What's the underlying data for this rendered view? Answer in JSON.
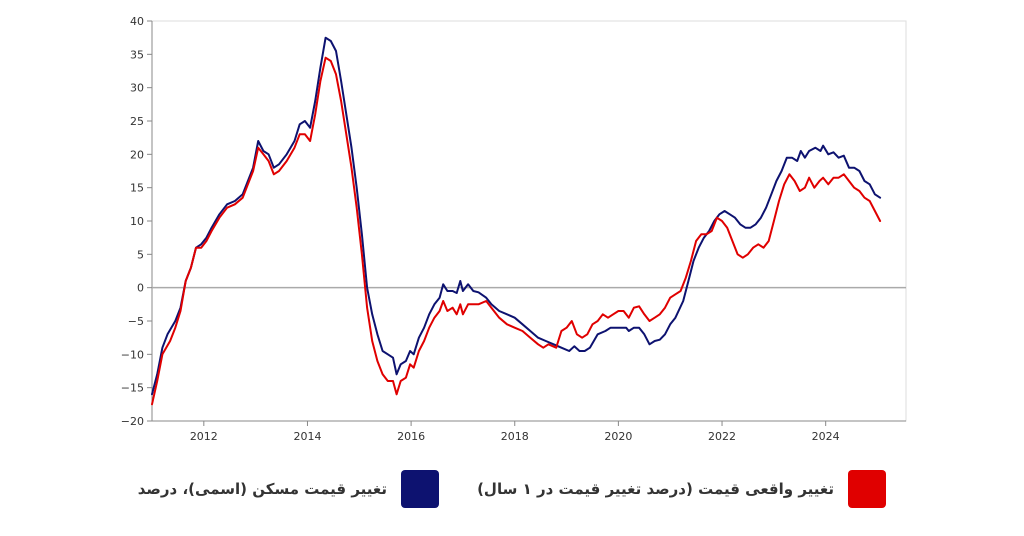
{
  "chart_data": {
    "type": "line",
    "xlim": [
      2011.0,
      2025.55
    ],
    "ylim": [
      -20,
      40
    ],
    "x_ticks": [
      2012,
      2014,
      2016,
      2018,
      2020,
      2022,
      2024
    ],
    "x_tick_labels": [
      "2012",
      "2014",
      "2016",
      "2018",
      "2020",
      "2022",
      "2024"
    ],
    "y_ticks": [
      -20,
      -15,
      -10,
      -5,
      0,
      5,
      10,
      15,
      20,
      25,
      30,
      35,
      40
    ],
    "y_tick_labels": [
      "−20",
      "−15",
      "−10",
      "−5",
      "0",
      "5",
      "10",
      "15",
      "20",
      "25",
      "30",
      "35",
      "40"
    ],
    "grid": false,
    "legend_position": "bottom",
    "series": [
      {
        "name": "تغییر قیمت مسکن (اسمی)، درصد",
        "color": "#0d1270",
        "points": [
          [
            2011.0,
            -16
          ],
          [
            2011.1,
            -13
          ],
          [
            2011.2,
            -9
          ],
          [
            2011.3,
            -7
          ],
          [
            2011.45,
            -5
          ],
          [
            2011.55,
            -3
          ],
          [
            2011.65,
            1
          ],
          [
            2011.75,
            3
          ],
          [
            2011.85,
            6
          ],
          [
            2011.95,
            6.5
          ],
          [
            2012.05,
            7.5
          ],
          [
            2012.15,
            9
          ],
          [
            2012.3,
            11
          ],
          [
            2012.45,
            12.5
          ],
          [
            2012.6,
            13
          ],
          [
            2012.75,
            14
          ],
          [
            2012.85,
            16
          ],
          [
            2012.95,
            18
          ],
          [
            2013.05,
            22
          ],
          [
            2013.15,
            20.5
          ],
          [
            2013.25,
            20
          ],
          [
            2013.35,
            18
          ],
          [
            2013.45,
            18.5
          ],
          [
            2013.6,
            20
          ],
          [
            2013.75,
            22
          ],
          [
            2013.85,
            24.5
          ],
          [
            2013.95,
            25
          ],
          [
            2014.05,
            24
          ],
          [
            2014.15,
            28
          ],
          [
            2014.25,
            33
          ],
          [
            2014.35,
            37.5
          ],
          [
            2014.45,
            37
          ],
          [
            2014.55,
            35.5
          ],
          [
            2014.65,
            31
          ],
          [
            2014.75,
            26
          ],
          [
            2014.85,
            21
          ],
          [
            2014.95,
            15
          ],
          [
            2015.05,
            8
          ],
          [
            2015.15,
            0
          ],
          [
            2015.25,
            -4
          ],
          [
            2015.35,
            -7
          ],
          [
            2015.45,
            -9.5
          ],
          [
            2015.55,
            -10
          ],
          [
            2015.65,
            -10.5
          ],
          [
            2015.72,
            -13
          ],
          [
            2015.8,
            -11.5
          ],
          [
            2015.9,
            -11
          ],
          [
            2015.98,
            -9.5
          ],
          [
            2016.05,
            -10
          ],
          [
            2016.15,
            -7.5
          ],
          [
            2016.25,
            -6
          ],
          [
            2016.35,
            -4
          ],
          [
            2016.45,
            -2.5
          ],
          [
            2016.55,
            -1.5
          ],
          [
            2016.62,
            0.5
          ],
          [
            2016.7,
            -0.5
          ],
          [
            2016.8,
            -0.5
          ],
          [
            2016.88,
            -0.8
          ],
          [
            2016.95,
            1
          ],
          [
            2017.0,
            -0.5
          ],
          [
            2017.1,
            0.5
          ],
          [
            2017.2,
            -0.5
          ],
          [
            2017.3,
            -0.7
          ],
          [
            2017.45,
            -1.5
          ],
          [
            2017.55,
            -2.5
          ],
          [
            2017.7,
            -3.5
          ],
          [
            2017.85,
            -4
          ],
          [
            2018.0,
            -4.5
          ],
          [
            2018.15,
            -5.5
          ],
          [
            2018.3,
            -6.5
          ],
          [
            2018.45,
            -7.5
          ],
          [
            2018.6,
            -8
          ],
          [
            2018.75,
            -8.5
          ],
          [
            2018.9,
            -9
          ],
          [
            2019.05,
            -9.5
          ],
          [
            2019.15,
            -8.8
          ],
          [
            2019.25,
            -9.5
          ],
          [
            2019.35,
            -9.5
          ],
          [
            2019.45,
            -9
          ],
          [
            2019.6,
            -7
          ],
          [
            2019.75,
            -6.5
          ],
          [
            2019.85,
            -6
          ],
          [
            2020.0,
            -6
          ],
          [
            2020.15,
            -6
          ],
          [
            2020.2,
            -6.5
          ],
          [
            2020.3,
            -6
          ],
          [
            2020.4,
            -6
          ],
          [
            2020.5,
            -7
          ],
          [
            2020.6,
            -8.5
          ],
          [
            2020.7,
            -8
          ],
          [
            2020.8,
            -7.8
          ],
          [
            2020.9,
            -7
          ],
          [
            2021.0,
            -5.5
          ],
          [
            2021.1,
            -4.5
          ],
          [
            2021.25,
            -2
          ],
          [
            2021.35,
            1
          ],
          [
            2021.45,
            4
          ],
          [
            2021.55,
            6
          ],
          [
            2021.65,
            7.5
          ],
          [
            2021.75,
            8.5
          ],
          [
            2021.85,
            10
          ],
          [
            2021.95,
            11
          ],
          [
            2022.05,
            11.5
          ],
          [
            2022.15,
            11
          ],
          [
            2022.25,
            10.5
          ],
          [
            2022.35,
            9.5
          ],
          [
            2022.45,
            9
          ],
          [
            2022.55,
            9
          ],
          [
            2022.65,
            9.5
          ],
          [
            2022.75,
            10.5
          ],
          [
            2022.85,
            12
          ],
          [
            2022.95,
            14
          ],
          [
            2023.05,
            16
          ],
          [
            2023.15,
            17.5
          ],
          [
            2023.25,
            19.5
          ],
          [
            2023.35,
            19.5
          ],
          [
            2023.45,
            19
          ],
          [
            2023.52,
            20.5
          ],
          [
            2023.6,
            19.5
          ],
          [
            2023.68,
            20.5
          ],
          [
            2023.8,
            21
          ],
          [
            2023.9,
            20.5
          ],
          [
            2023.95,
            21.3
          ],
          [
            2024.05,
            20
          ],
          [
            2024.15,
            20.3
          ],
          [
            2024.25,
            19.5
          ],
          [
            2024.35,
            19.8
          ],
          [
            2024.45,
            18
          ],
          [
            2024.55,
            18
          ],
          [
            2024.65,
            17.5
          ],
          [
            2024.75,
            16
          ],
          [
            2024.85,
            15.5
          ],
          [
            2024.95,
            14
          ],
          [
            2025.05,
            13.5
          ]
        ]
      },
      {
        "name": "تغییر واقعی قیمت (درصد تغییر قیمت در ۱ سال)",
        "color": "#e00000",
        "points": [
          [
            2011.0,
            -17.5
          ],
          [
            2011.1,
            -14
          ],
          [
            2011.2,
            -10
          ],
          [
            2011.35,
            -8
          ],
          [
            2011.45,
            -6
          ],
          [
            2011.55,
            -3.5
          ],
          [
            2011.65,
            1
          ],
          [
            2011.75,
            3
          ],
          [
            2011.85,
            6
          ],
          [
            2011.95,
            6
          ],
          [
            2012.05,
            7
          ],
          [
            2012.15,
            8.5
          ],
          [
            2012.3,
            10.5
          ],
          [
            2012.45,
            12
          ],
          [
            2012.6,
            12.5
          ],
          [
            2012.75,
            13.5
          ],
          [
            2012.85,
            15.5
          ],
          [
            2012.95,
            17.5
          ],
          [
            2013.05,
            21
          ],
          [
            2013.15,
            20
          ],
          [
            2013.25,
            19
          ],
          [
            2013.35,
            17
          ],
          [
            2013.45,
            17.5
          ],
          [
            2013.6,
            19
          ],
          [
            2013.75,
            21
          ],
          [
            2013.85,
            23
          ],
          [
            2013.95,
            23
          ],
          [
            2014.05,
            22
          ],
          [
            2014.15,
            26
          ],
          [
            2014.25,
            31
          ],
          [
            2014.35,
            34.5
          ],
          [
            2014.45,
            34
          ],
          [
            2014.55,
            32
          ],
          [
            2014.65,
            28
          ],
          [
            2014.75,
            23
          ],
          [
            2014.85,
            18
          ],
          [
            2014.95,
            12
          ],
          [
            2015.05,
            5
          ],
          [
            2015.15,
            -3
          ],
          [
            2015.25,
            -8
          ],
          [
            2015.35,
            -11
          ],
          [
            2015.45,
            -13
          ],
          [
            2015.55,
            -14
          ],
          [
            2015.65,
            -14
          ],
          [
            2015.72,
            -16
          ],
          [
            2015.8,
            -14
          ],
          [
            2015.9,
            -13.5
          ],
          [
            2015.98,
            -11.5
          ],
          [
            2016.05,
            -12
          ],
          [
            2016.15,
            -9.5
          ],
          [
            2016.25,
            -8
          ],
          [
            2016.35,
            -6
          ],
          [
            2016.45,
            -4.5
          ],
          [
            2016.55,
            -3.5
          ],
          [
            2016.62,
            -2
          ],
          [
            2016.7,
            -3.5
          ],
          [
            2016.8,
            -3
          ],
          [
            2016.88,
            -4
          ],
          [
            2016.95,
            -2.5
          ],
          [
            2017.0,
            -4
          ],
          [
            2017.1,
            -2.5
          ],
          [
            2017.2,
            -2.5
          ],
          [
            2017.3,
            -2.5
          ],
          [
            2017.45,
            -2
          ],
          [
            2017.55,
            -3
          ],
          [
            2017.7,
            -4.5
          ],
          [
            2017.85,
            -5.5
          ],
          [
            2018.0,
            -6
          ],
          [
            2018.15,
            -6.5
          ],
          [
            2018.3,
            -7.5
          ],
          [
            2018.45,
            -8.5
          ],
          [
            2018.55,
            -9
          ],
          [
            2018.65,
            -8.5
          ],
          [
            2018.8,
            -9
          ],
          [
            2018.9,
            -6.5
          ],
          [
            2019.0,
            -6
          ],
          [
            2019.1,
            -5
          ],
          [
            2019.2,
            -7
          ],
          [
            2019.3,
            -7.5
          ],
          [
            2019.4,
            -7
          ],
          [
            2019.5,
            -5.5
          ],
          [
            2019.6,
            -5
          ],
          [
            2019.7,
            -4
          ],
          [
            2019.8,
            -4.5
          ],
          [
            2019.9,
            -4
          ],
          [
            2020.0,
            -3.5
          ],
          [
            2020.1,
            -3.5
          ],
          [
            2020.2,
            -4.5
          ],
          [
            2020.3,
            -3
          ],
          [
            2020.4,
            -2.8
          ],
          [
            2020.5,
            -4
          ],
          [
            2020.6,
            -5
          ],
          [
            2020.7,
            -4.5
          ],
          [
            2020.8,
            -4
          ],
          [
            2020.9,
            -3
          ],
          [
            2021.0,
            -1.5
          ],
          [
            2021.1,
            -1
          ],
          [
            2021.2,
            -0.5
          ],
          [
            2021.3,
            1.5
          ],
          [
            2021.4,
            4
          ],
          [
            2021.5,
            7
          ],
          [
            2021.6,
            8
          ],
          [
            2021.7,
            8
          ],
          [
            2021.8,
            8.5
          ],
          [
            2021.9,
            10.5
          ],
          [
            2022.0,
            10
          ],
          [
            2022.1,
            9
          ],
          [
            2022.2,
            7
          ],
          [
            2022.3,
            5
          ],
          [
            2022.4,
            4.5
          ],
          [
            2022.5,
            5
          ],
          [
            2022.6,
            6
          ],
          [
            2022.7,
            6.5
          ],
          [
            2022.8,
            6
          ],
          [
            2022.9,
            7
          ],
          [
            2023.0,
            10
          ],
          [
            2023.1,
            13
          ],
          [
            2023.2,
            15.5
          ],
          [
            2023.3,
            17
          ],
          [
            2023.4,
            16
          ],
          [
            2023.5,
            14.5
          ],
          [
            2023.6,
            15
          ],
          [
            2023.68,
            16.5
          ],
          [
            2023.78,
            15
          ],
          [
            2023.88,
            16
          ],
          [
            2023.95,
            16.5
          ],
          [
            2024.05,
            15.5
          ],
          [
            2024.15,
            16.5
          ],
          [
            2024.25,
            16.5
          ],
          [
            2024.35,
            17
          ],
          [
            2024.45,
            16
          ],
          [
            2024.55,
            15
          ],
          [
            2024.65,
            14.5
          ],
          [
            2024.75,
            13.5
          ],
          [
            2024.85,
            13
          ],
          [
            2024.95,
            11.5
          ],
          [
            2025.05,
            10
          ]
        ]
      }
    ]
  },
  "legend": {
    "real_label": "تغییر واقعی قیمت (درصد تغییر قیمت در ۱ سال)",
    "nominal_label": "تغییر قیمت مسکن (اسمی)، درصد",
    "real_color": "#e00000",
    "nominal_color": "#0d1270"
  }
}
